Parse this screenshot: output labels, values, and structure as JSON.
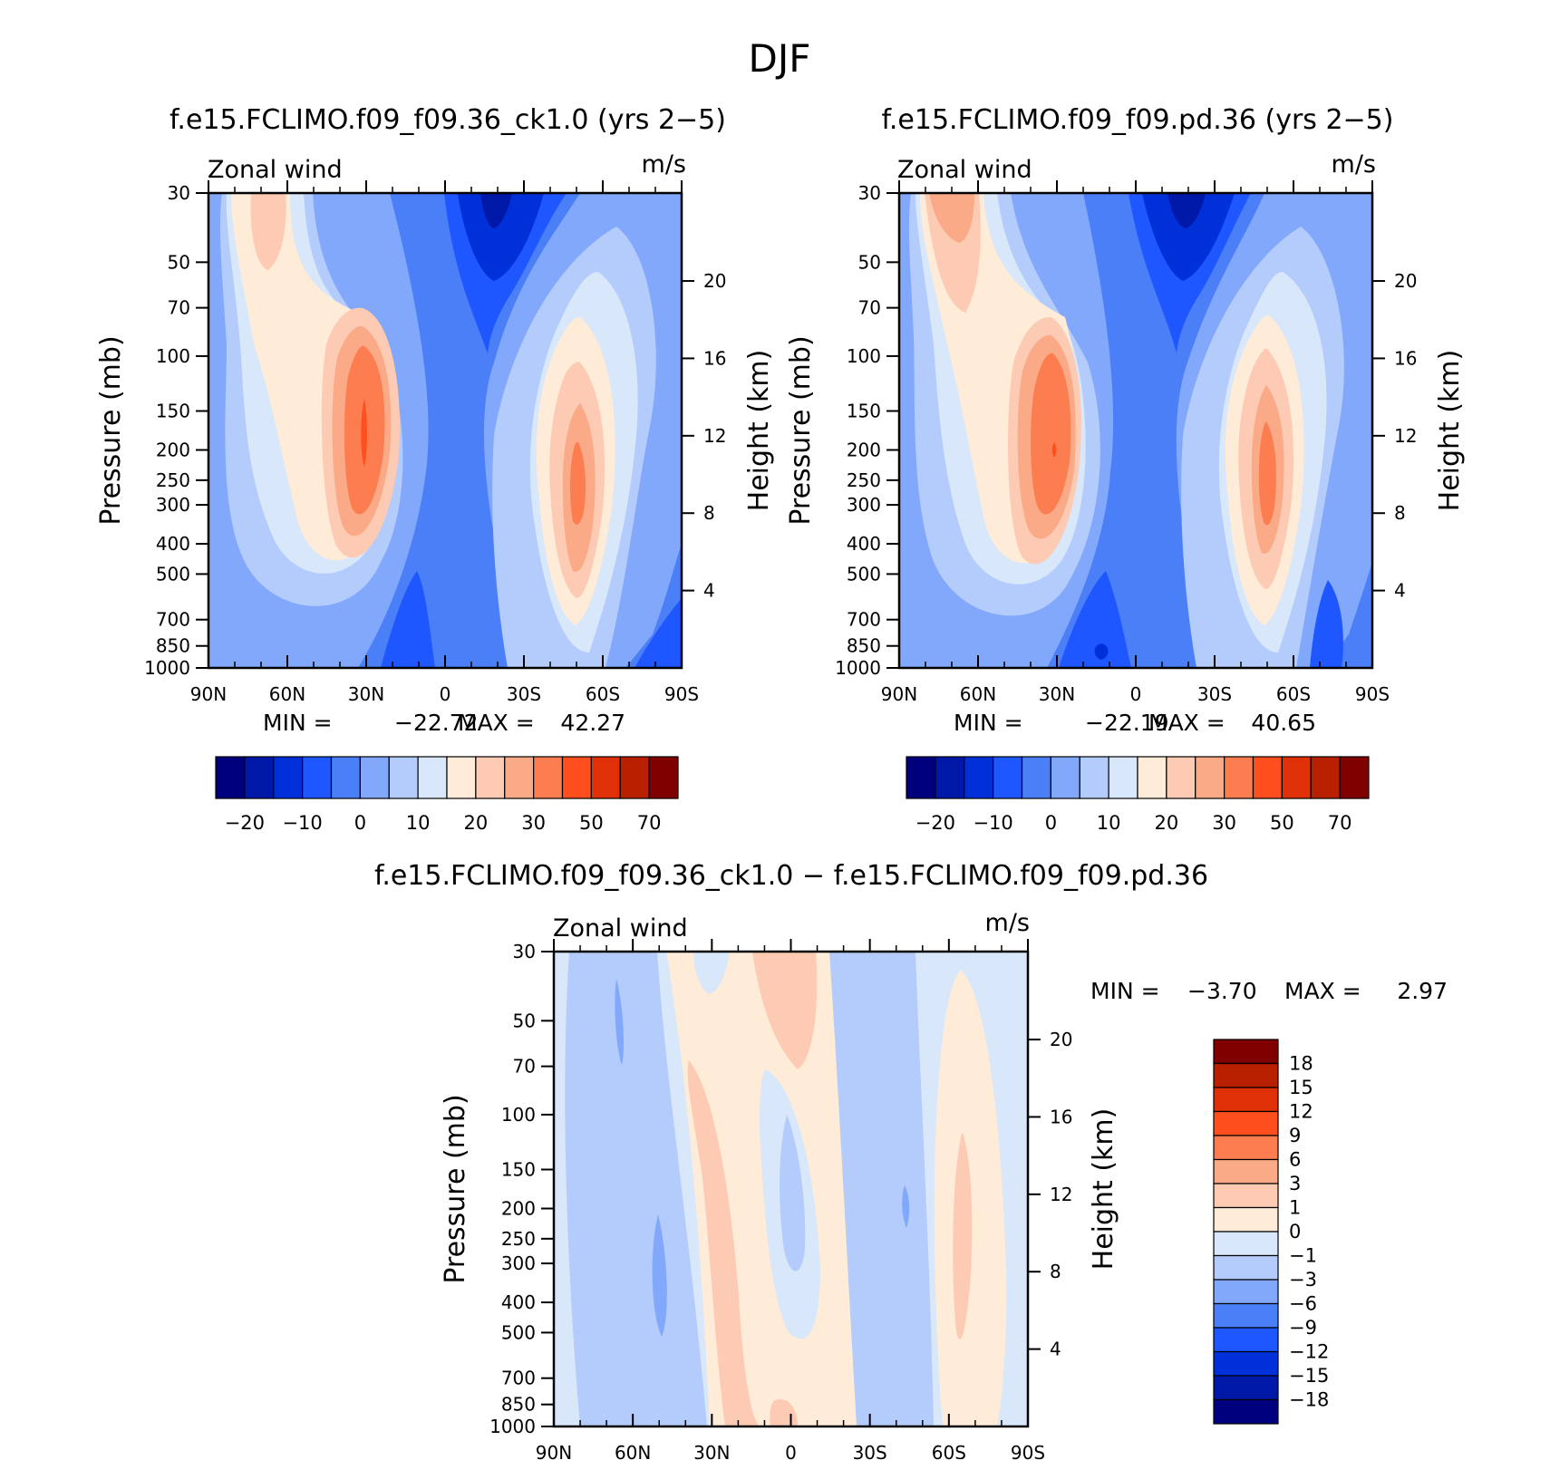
{
  "figure": {
    "title": "DJF"
  },
  "colors": {
    "full_scale": [
      "#00007f",
      "#0018a8",
      "#0030d8",
      "#1e56ff",
      "#4a7ff8",
      "#82a8fc",
      "#b3ccfc",
      "#d8e8fa",
      "#feebd8",
      "#fdcbb3",
      "#fbaa88",
      "#fb7d50",
      "#ff4f1e",
      "#e03008",
      "#b82000",
      "#800000"
    ],
    "diff_scale": [
      "#00007f",
      "#0018a8",
      "#0030d8",
      "#1e56ff",
      "#4a7ff8",
      "#82a8fc",
      "#b3ccfc",
      "#d8e8fa",
      "#feebd8",
      "#fdcbb3",
      "#fbaa88",
      "#fb7d50",
      "#ff4f1e",
      "#e03008",
      "#b82000",
      "#800000"
    ]
  },
  "chart_data": [
    {
      "id": "panel-ck",
      "type": "contour",
      "title": "f.e15.FCLIMO.f09_f09.36_ck1.0 (yrs 2−5)",
      "variable_label": "Zonal wind",
      "units_label": "m/s",
      "ylabel": "Pressure (mb)",
      "ylabel_right": "Height (km)",
      "x_ticks": [
        "90N",
        "60N",
        "30N",
        "0",
        "30S",
        "60S",
        "90S"
      ],
      "y_ticks": [
        "30",
        "50",
        "70",
        "100",
        "150",
        "200",
        "250",
        "300",
        "400",
        "500",
        "700",
        "850",
        "1000"
      ],
      "y_right_ticks": [
        "20",
        "16",
        "12",
        "8",
        "4"
      ],
      "min_label": "MIN =",
      "min_value": "−22.72",
      "max_label": "MAX =",
      "max_value": "42.27",
      "colorbar_labels": [
        "−20",
        "−10",
        "0",
        "10",
        "20",
        "30",
        "50",
        "70"
      ]
    },
    {
      "id": "panel-pd",
      "type": "contour",
      "title": "f.e15.FCLIMO.f09_f09.pd.36 (yrs 2−5)",
      "variable_label": "Zonal wind",
      "units_label": "m/s",
      "ylabel": "Pressure (mb)",
      "ylabel_right": "Height (km)",
      "x_ticks": [
        "90N",
        "60N",
        "30N",
        "0",
        "30S",
        "60S",
        "90S"
      ],
      "y_ticks": [
        "30",
        "50",
        "70",
        "100",
        "150",
        "200",
        "250",
        "300",
        "400",
        "500",
        "700",
        "850",
        "1000"
      ],
      "y_right_ticks": [
        "20",
        "16",
        "12",
        "8",
        "4"
      ],
      "min_label": "MIN =",
      "min_value": "−22.19",
      "max_label": "MAX =",
      "max_value": "40.65",
      "colorbar_labels": [
        "−20",
        "−10",
        "0",
        "10",
        "20",
        "30",
        "50",
        "70"
      ]
    },
    {
      "id": "panel-diff",
      "type": "contour",
      "title": "f.e15.FCLIMO.f09_f09.36_ck1.0 − f.e15.FCLIMO.f09_f09.pd.36",
      "variable_label": "Zonal wind",
      "units_label": "m/s",
      "ylabel": "Pressure (mb)",
      "ylabel_right": "Height (km)",
      "x_ticks": [
        "90N",
        "60N",
        "30N",
        "0",
        "30S",
        "60S",
        "90S"
      ],
      "y_ticks": [
        "30",
        "50",
        "70",
        "100",
        "150",
        "200",
        "250",
        "300",
        "400",
        "500",
        "700",
        "850",
        "1000"
      ],
      "y_right_ticks": [
        "20",
        "16",
        "12",
        "8",
        "4"
      ],
      "min_label": "MIN =",
      "min_value": "−3.70",
      "max_label": "MAX =",
      "max_value": "2.97",
      "colorbar_labels": [
        "18",
        "15",
        "12",
        "9",
        "6",
        "3",
        "1",
        "0",
        "−1",
        "−3",
        "−6",
        "−9",
        "−12",
        "−15",
        "−18"
      ]
    }
  ]
}
